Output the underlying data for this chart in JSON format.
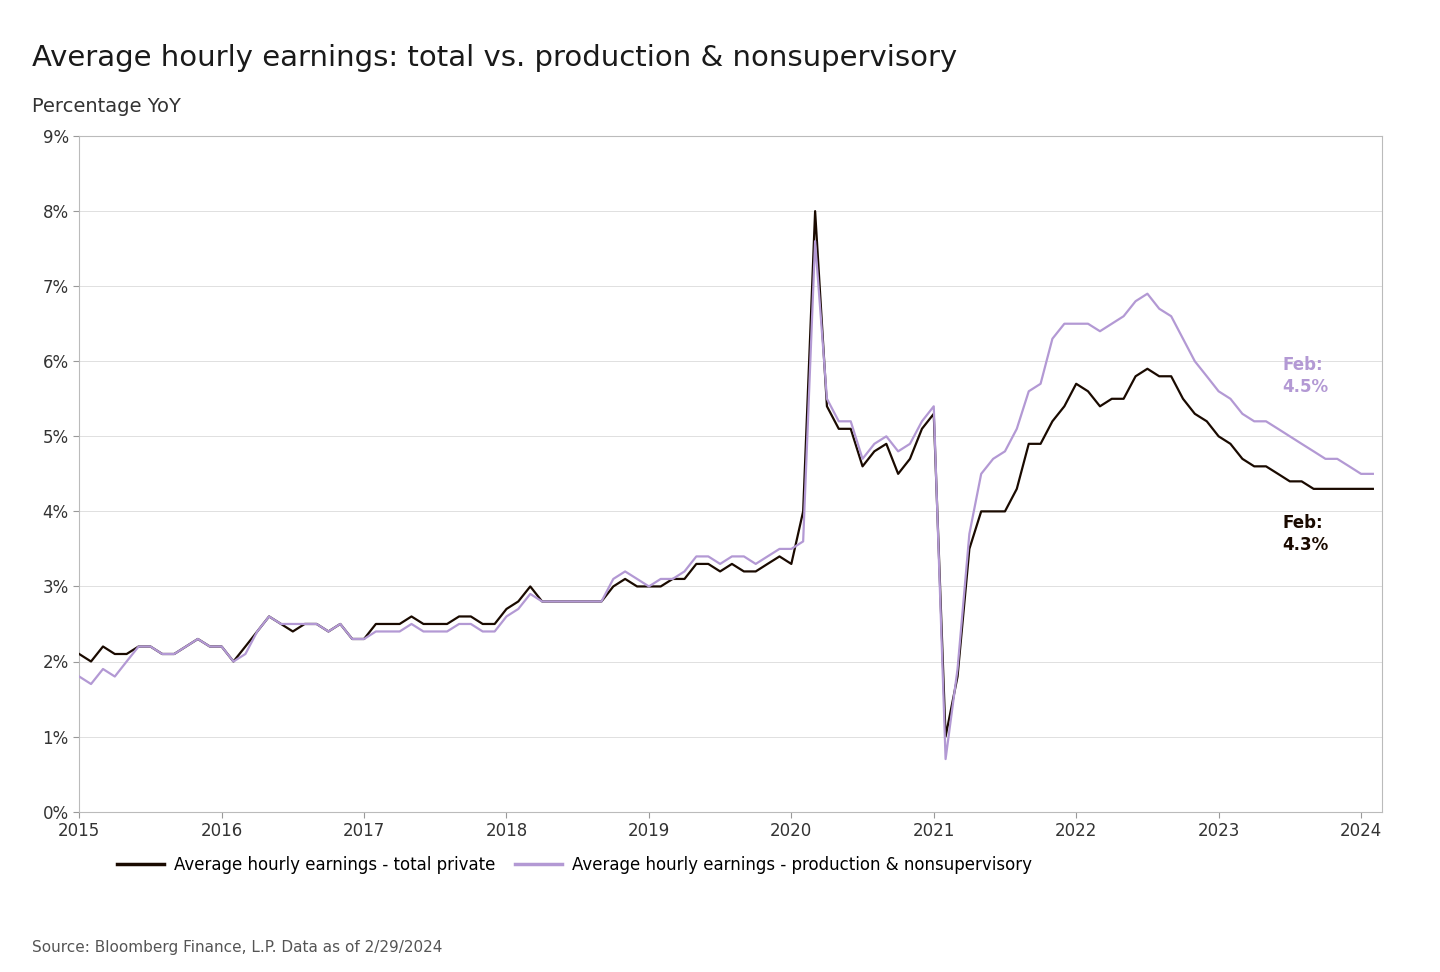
{
  "title": "Average hourly earnings: total vs. production & nonsupervisory",
  "subtitle": "Percentage YoY",
  "source": "Source: Bloomberg Finance, L.P. Data as of 2/29/2024",
  "color_total": "#1a0a00",
  "color_prod": "#b399d4",
  "legend_total": "Average hourly earnings - total private",
  "legend_prod": "Average hourly earnings - production & nonsupervisory",
  "yticks": [
    0.0,
    0.01,
    0.02,
    0.03,
    0.04,
    0.05,
    0.06,
    0.07,
    0.08,
    0.09
  ],
  "ytick_labels": [
    "0%",
    "1%",
    "2%",
    "3%",
    "4%",
    "5%",
    "6%",
    "7%",
    "8%",
    "9%"
  ],
  "xticks": [
    2015,
    2016,
    2017,
    2018,
    2019,
    2020,
    2021,
    2022,
    2023,
    2024
  ],
  "total_dates": [
    2015.0,
    2015.083,
    2015.167,
    2015.25,
    2015.333,
    2015.417,
    2015.5,
    2015.583,
    2015.667,
    2015.75,
    2015.833,
    2015.917,
    2016.0,
    2016.083,
    2016.167,
    2016.25,
    2016.333,
    2016.417,
    2016.5,
    2016.583,
    2016.667,
    2016.75,
    2016.833,
    2016.917,
    2017.0,
    2017.083,
    2017.167,
    2017.25,
    2017.333,
    2017.417,
    2017.5,
    2017.583,
    2017.667,
    2017.75,
    2017.833,
    2017.917,
    2018.0,
    2018.083,
    2018.167,
    2018.25,
    2018.333,
    2018.417,
    2018.5,
    2018.583,
    2018.667,
    2018.75,
    2018.833,
    2018.917,
    2019.0,
    2019.083,
    2019.167,
    2019.25,
    2019.333,
    2019.417,
    2019.5,
    2019.583,
    2019.667,
    2019.75,
    2019.833,
    2019.917,
    2020.0,
    2020.083,
    2020.167,
    2020.25,
    2020.333,
    2020.417,
    2020.5,
    2020.583,
    2020.667,
    2020.75,
    2020.833,
    2020.917,
    2021.0,
    2021.083,
    2021.167,
    2021.25,
    2021.333,
    2021.417,
    2021.5,
    2021.583,
    2021.667,
    2021.75,
    2021.833,
    2021.917,
    2022.0,
    2022.083,
    2022.167,
    2022.25,
    2022.333,
    2022.417,
    2022.5,
    2022.583,
    2022.667,
    2022.75,
    2022.833,
    2022.917,
    2023.0,
    2023.083,
    2023.167,
    2023.25,
    2023.333,
    2023.417,
    2023.5,
    2023.583,
    2023.667,
    2023.75,
    2023.833,
    2023.917,
    2024.0,
    2024.083
  ],
  "total_values": [
    0.021,
    0.02,
    0.022,
    0.021,
    0.021,
    0.022,
    0.022,
    0.021,
    0.021,
    0.022,
    0.023,
    0.022,
    0.022,
    0.02,
    0.022,
    0.024,
    0.026,
    0.025,
    0.024,
    0.025,
    0.025,
    0.024,
    0.025,
    0.023,
    0.023,
    0.025,
    0.025,
    0.025,
    0.026,
    0.025,
    0.025,
    0.025,
    0.026,
    0.026,
    0.025,
    0.025,
    0.027,
    0.028,
    0.03,
    0.028,
    0.028,
    0.028,
    0.028,
    0.028,
    0.028,
    0.03,
    0.031,
    0.03,
    0.03,
    0.03,
    0.031,
    0.031,
    0.033,
    0.033,
    0.032,
    0.033,
    0.032,
    0.032,
    0.033,
    0.034,
    0.033,
    0.04,
    0.08,
    0.054,
    0.051,
    0.051,
    0.046,
    0.048,
    0.049,
    0.045,
    0.047,
    0.051,
    0.053,
    0.01,
    0.018,
    0.035,
    0.04,
    0.04,
    0.04,
    0.043,
    0.049,
    0.049,
    0.052,
    0.054,
    0.057,
    0.056,
    0.054,
    0.055,
    0.055,
    0.058,
    0.059,
    0.058,
    0.058,
    0.055,
    0.053,
    0.052,
    0.05,
    0.049,
    0.047,
    0.046,
    0.046,
    0.045,
    0.044,
    0.044,
    0.043,
    0.043,
    0.043,
    0.043,
    0.043,
    0.043
  ],
  "prod_dates": [
    2015.0,
    2015.083,
    2015.167,
    2015.25,
    2015.333,
    2015.417,
    2015.5,
    2015.583,
    2015.667,
    2015.75,
    2015.833,
    2015.917,
    2016.0,
    2016.083,
    2016.167,
    2016.25,
    2016.333,
    2016.417,
    2016.5,
    2016.583,
    2016.667,
    2016.75,
    2016.833,
    2016.917,
    2017.0,
    2017.083,
    2017.167,
    2017.25,
    2017.333,
    2017.417,
    2017.5,
    2017.583,
    2017.667,
    2017.75,
    2017.833,
    2017.917,
    2018.0,
    2018.083,
    2018.167,
    2018.25,
    2018.333,
    2018.417,
    2018.5,
    2018.583,
    2018.667,
    2018.75,
    2018.833,
    2018.917,
    2019.0,
    2019.083,
    2019.167,
    2019.25,
    2019.333,
    2019.417,
    2019.5,
    2019.583,
    2019.667,
    2019.75,
    2019.833,
    2019.917,
    2020.0,
    2020.083,
    2020.167,
    2020.25,
    2020.333,
    2020.417,
    2020.5,
    2020.583,
    2020.667,
    2020.75,
    2020.833,
    2020.917,
    2021.0,
    2021.083,
    2021.167,
    2021.25,
    2021.333,
    2021.417,
    2021.5,
    2021.583,
    2021.667,
    2021.75,
    2021.833,
    2021.917,
    2022.0,
    2022.083,
    2022.167,
    2022.25,
    2022.333,
    2022.417,
    2022.5,
    2022.583,
    2022.667,
    2022.75,
    2022.833,
    2022.917,
    2023.0,
    2023.083,
    2023.167,
    2023.25,
    2023.333,
    2023.417,
    2023.5,
    2023.583,
    2023.667,
    2023.75,
    2023.833,
    2023.917,
    2024.0,
    2024.083
  ],
  "prod_values": [
    0.018,
    0.017,
    0.019,
    0.018,
    0.02,
    0.022,
    0.022,
    0.021,
    0.021,
    0.022,
    0.023,
    0.022,
    0.022,
    0.02,
    0.021,
    0.024,
    0.026,
    0.025,
    0.025,
    0.025,
    0.025,
    0.024,
    0.025,
    0.023,
    0.023,
    0.024,
    0.024,
    0.024,
    0.025,
    0.024,
    0.024,
    0.024,
    0.025,
    0.025,
    0.024,
    0.024,
    0.026,
    0.027,
    0.029,
    0.028,
    0.028,
    0.028,
    0.028,
    0.028,
    0.028,
    0.031,
    0.032,
    0.031,
    0.03,
    0.031,
    0.031,
    0.032,
    0.034,
    0.034,
    0.033,
    0.034,
    0.034,
    0.033,
    0.034,
    0.035,
    0.035,
    0.036,
    0.076,
    0.055,
    0.052,
    0.052,
    0.047,
    0.049,
    0.05,
    0.048,
    0.049,
    0.052,
    0.054,
    0.007,
    0.019,
    0.037,
    0.045,
    0.047,
    0.048,
    0.051,
    0.056,
    0.057,
    0.063,
    0.065,
    0.065,
    0.065,
    0.064,
    0.065,
    0.066,
    0.068,
    0.069,
    0.067,
    0.066,
    0.063,
    0.06,
    0.058,
    0.056,
    0.055,
    0.053,
    0.052,
    0.052,
    0.051,
    0.05,
    0.049,
    0.048,
    0.047,
    0.047,
    0.046,
    0.045,
    0.045
  ]
}
